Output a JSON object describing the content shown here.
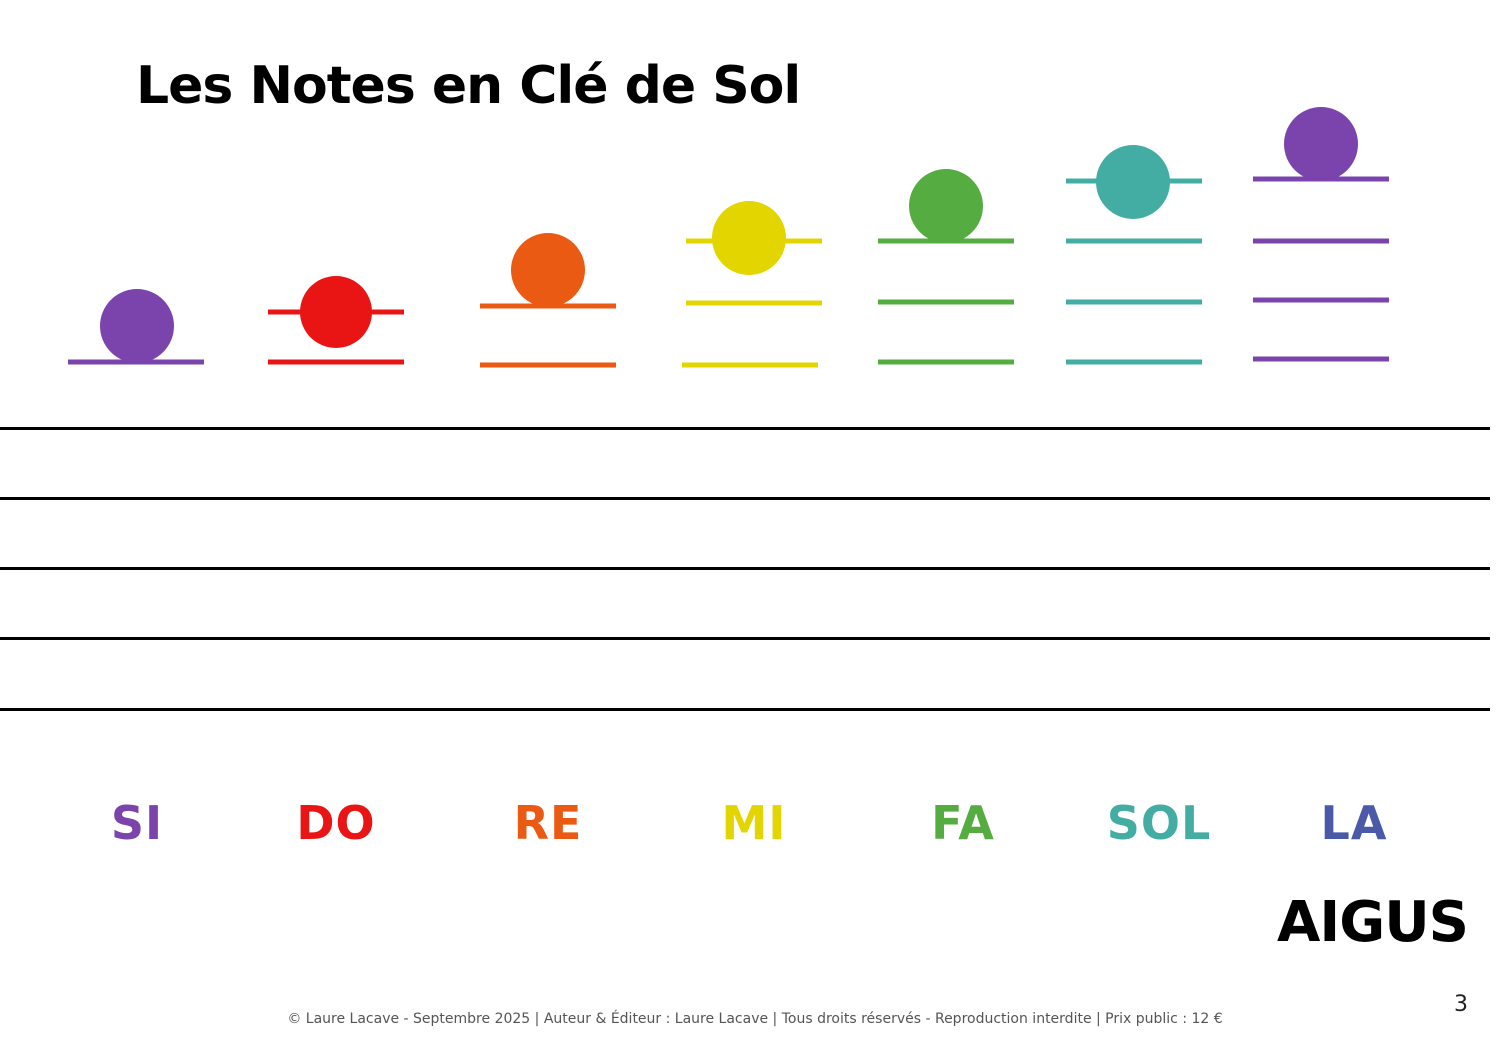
{
  "title": "Les Notes en Clé de Sol",
  "notes": [
    {
      "name": "SI",
      "color": "#7b44ad"
    },
    {
      "name": "DO",
      "color": "#e91515"
    },
    {
      "name": "RE",
      "color": "#ea5a12"
    },
    {
      "name": "MI",
      "color": "#e2d500"
    },
    {
      "name": "FA",
      "color": "#55ac41"
    },
    {
      "name": "SOL",
      "color": "#44ada3"
    },
    {
      "name": "LA",
      "color": "#7b44ad",
      "label_color": "#4b5aa8"
    }
  ],
  "range_label": "AIGUS",
  "footer": "© Laure Lacave - Septembre 2025 | Auteur & Éditeur : Laure Lacave | Tous droits réservés - Reproduction interdite | Prix public : 12 €",
  "page_number": "3",
  "staff_color": "#000000"
}
